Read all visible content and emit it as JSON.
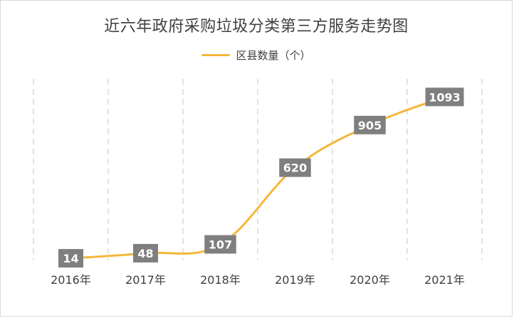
{
  "chart_data": {
    "type": "line",
    "title": "近六年政府采购垃圾分类第三方服务走势图",
    "categories": [
      "2016年",
      "2017年",
      "2018年",
      "2019年",
      "2020年",
      "2021年"
    ],
    "series": [
      {
        "name": "区县数量（个）",
        "values": [
          14,
          48,
          107,
          620,
          905,
          1093
        ]
      }
    ],
    "xlabel": "",
    "ylabel": "",
    "grid": "vertical dashed",
    "legend_position": "top",
    "line_color": "#f4b73a",
    "label_bg_color": "#7f7f7f",
    "label_text_color": "#ffffff"
  }
}
